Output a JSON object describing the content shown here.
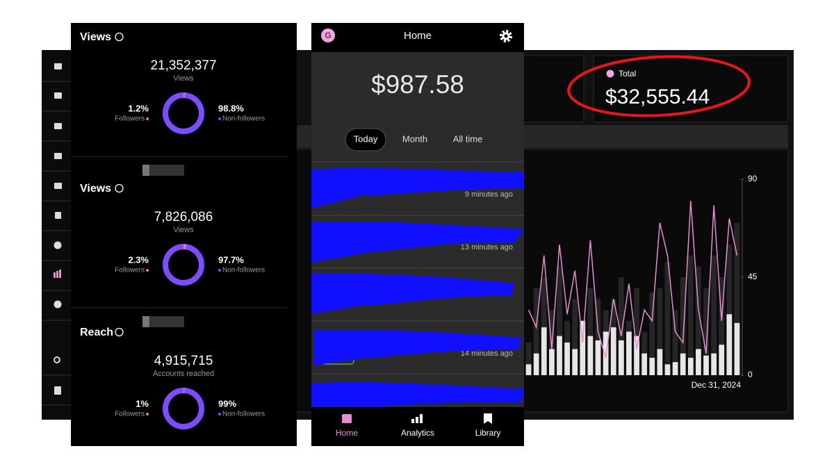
{
  "dashboard": {
    "total": {
      "label": "Total",
      "value": "$32,555.44"
    },
    "chart": {
      "type": "bar-line",
      "ylim": [
        0,
        90
      ],
      "yticks": [
        0,
        45,
        90
      ],
      "x_label": "Dec 31, 2024",
      "colors": {
        "light": "#e6e6e6",
        "dark": "#262626",
        "line": "#e58fd0"
      },
      "bars_light": [
        5,
        10,
        22,
        12,
        18,
        15,
        12,
        25,
        18,
        16,
        20,
        22,
        16,
        20,
        18,
        10,
        8,
        12,
        5,
        6,
        10,
        8,
        12,
        9,
        10,
        14,
        28,
        24
      ],
      "bars_dark": [
        15,
        40,
        45,
        30,
        50,
        25,
        35,
        20,
        40,
        35,
        30,
        35,
        45,
        25,
        40,
        20,
        38,
        40,
        52,
        30,
        45,
        55,
        50,
        40,
        55,
        45,
        60,
        70
      ],
      "line": [
        30,
        22,
        55,
        12,
        60,
        28,
        48,
        15,
        62,
        20,
        8,
        35,
        18,
        42,
        12,
        30,
        25,
        70,
        55,
        20,
        15,
        80,
        30,
        10,
        78,
        25,
        72,
        55
      ]
    }
  },
  "insights": {
    "sections": [
      {
        "title": "Views",
        "total": "21,352,377",
        "total_label": "Views",
        "followers": {
          "value": 1.2,
          "label": "1.2%",
          "name": "Followers"
        },
        "non_followers": {
          "value": 98.8,
          "label": "98.8%",
          "name": "Non-followers"
        }
      },
      {
        "title": "Views",
        "total": "7,826,086",
        "total_label": "Views",
        "followers": {
          "value": 2.3,
          "label": "2.3%",
          "name": "Followers"
        },
        "non_followers": {
          "value": 97.7,
          "label": "97.7%",
          "name": "Non-followers"
        }
      },
      {
        "title": "Reach",
        "total": "4,915,715",
        "total_label": "Accounts reached",
        "followers": {
          "value": 1,
          "label": "1%",
          "name": "Followers"
        },
        "non_followers": {
          "value": 99,
          "label": "99%",
          "name": "Non-followers"
        }
      }
    ]
  },
  "app": {
    "header": "Home",
    "logo": "G",
    "balance": "$987.58",
    "tabs": [
      "Today",
      "Month",
      "All time"
    ],
    "activity": [
      "9 minutes ago",
      "13 minutes ago",
      "14 minutes ago"
    ],
    "nav": [
      "Home",
      "Analytics",
      "Library"
    ]
  }
}
